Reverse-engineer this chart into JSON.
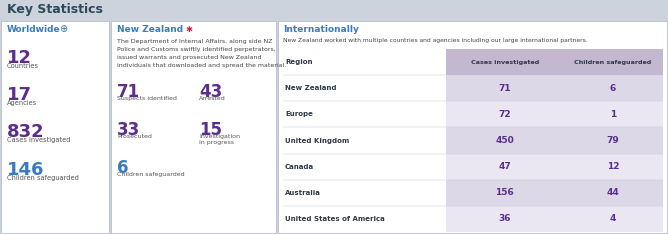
{
  "title": "Key Statistics",
  "title_color": "#2d4a5a",
  "header_bg": "#cdd3dc",
  "panel_bg": "#ffffff",
  "border_color": "#b0b8c5",
  "worldwide_title": "Worldwide",
  "worldwide_stats": [
    {
      "value": "12",
      "label": "Countries"
    },
    {
      "value": "17",
      "label": "Agencies"
    },
    {
      "value": "832",
      "label": "Cases investigated"
    },
    {
      "value": "146",
      "label": "Children safeguarded"
    }
  ],
  "worldwide_value_color": "#5b2d8e",
  "worldwide_title_color": "#3a7bbf",
  "worldwide_last_value_color": "#3a7bbf",
  "nz_title": "New Zealand",
  "nz_title_color": "#3a7bbf",
  "nz_description": "The Department of Internal Affairs, along side NZ\nPolice and Customs swiftly identified perpetrators,\nissued warrants and prosecuted New Zealand\nindividuals that downloaded and spread the material.",
  "nz_stats_left": [
    {
      "value": "71",
      "label": "Suspects identified"
    },
    {
      "value": "33",
      "label": "Prosecuted"
    },
    {
      "value": "6",
      "label": "Children safeguarded"
    }
  ],
  "nz_stats_right": [
    {
      "value": "43",
      "label": "Arrested"
    },
    {
      "value": "15",
      "label": "Investigation\nin progress"
    }
  ],
  "nz_value_color": "#5b2d8e",
  "nz_last_value_color": "#3a7bbf",
  "intl_title": "Internationally",
  "intl_title_color": "#3a7bbf",
  "intl_description": "New Zealand worked with multiple countries and agencies including our large international partners.",
  "intl_col_headers": [
    "Region",
    "Cases investigated",
    "Children safeguarded"
  ],
  "intl_header_bg": "#c4b8d0",
  "intl_row_bg_even": "#ddd8e8",
  "intl_row_bg_odd": "#eae6f2",
  "intl_rows": [
    [
      "New Zealand",
      "71",
      "6"
    ],
    [
      "Europe",
      "72",
      "1"
    ],
    [
      "United Kingdom",
      "450",
      "79"
    ],
    [
      "Canada",
      "47",
      "12"
    ],
    [
      "Australia",
      "156",
      "44"
    ],
    [
      "United States of America",
      "36",
      "4"
    ]
  ],
  "intl_value_color": "#5b2d8e",
  "intl_region_color": "#2d3a4a"
}
